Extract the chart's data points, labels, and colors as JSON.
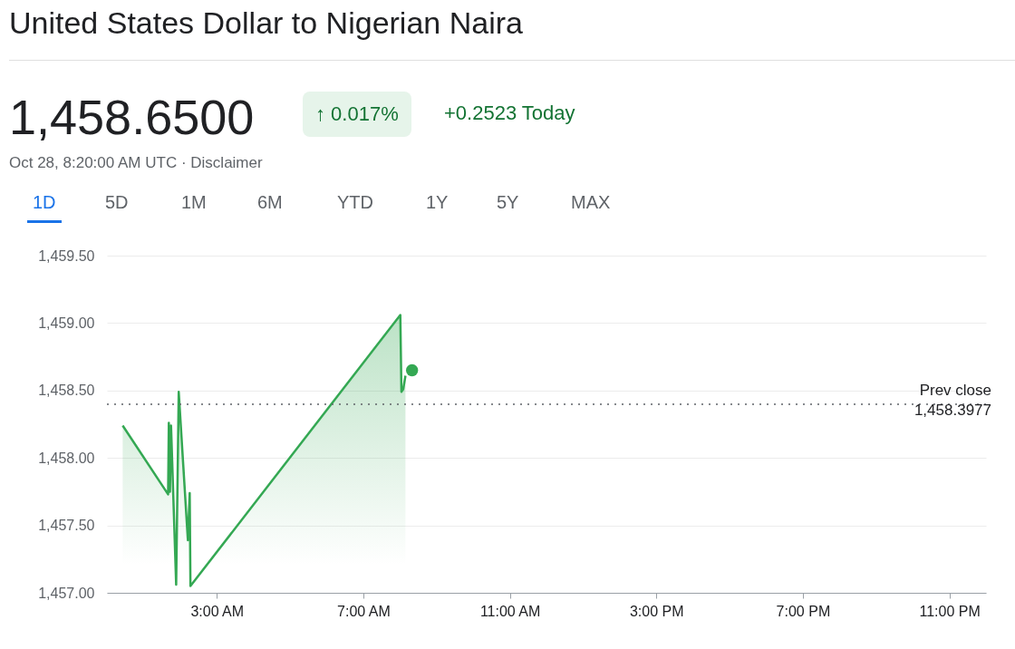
{
  "chart_data": {
    "type": "area",
    "title": "United States Dollar to Nigerian Naira",
    "annotations": [
      "1,458.6500",
      "↑ 0.017%",
      "+0.2523 Today",
      "Oct 28, 8:20:00 AM UTC · Disclaimer",
      "1D",
      "5D",
      "1M",
      "6M",
      "YTD",
      "1Y",
      "5Y",
      "MAX"
    ],
    "series": [
      {
        "color": "#34a853",
        "marker": "none",
        "x": [
          0.43,
          1.67,
          1.69,
          1.72,
          1.75,
          1.89,
          1.96,
          2.21,
          2.26,
          2.28,
          8.01,
          8.04,
          8.09,
          8.15
        ],
        "values": [
          1458.24,
          1457.73,
          1458.26,
          1457.75,
          1458.24,
          1457.06,
          1458.49,
          1457.39,
          1457.74,
          1457.05,
          1459.06,
          1458.49,
          1458.51,
          1458.61
        ]
      },
      {
        "type": "scatter",
        "color": "#34a853",
        "marker": "circle",
        "x": [
          8.33
        ],
        "values": [
          1458.65
        ]
      }
    ],
    "xlim": [
      0,
      24
    ],
    "xticks": [
      {
        "value": 3,
        "label": "3:00 AM"
      },
      {
        "value": 7,
        "label": "7:00 AM"
      },
      {
        "value": 11,
        "label": "11:00 AM"
      },
      {
        "value": 15,
        "label": "3:00 PM"
      },
      {
        "value": 19,
        "label": "7:00 PM"
      },
      {
        "value": 23,
        "label": "11:00 PM"
      }
    ],
    "ylim": [
      1457,
      1459.5
    ],
    "yticks": [
      {
        "value": 1457,
        "label": "1,457.00"
      },
      {
        "value": 1457.5,
        "label": "1,457.50"
      },
      {
        "value": 1458,
        "label": "1,458.00"
      },
      {
        "value": 1458.5,
        "label": "1,458.50"
      },
      {
        "value": 1459,
        "label": "1,459.00"
      },
      {
        "value": 1459.5,
        "label": "1,459.50"
      }
    ],
    "ref_lines": [
      {
        "axis": "y",
        "value": 1458.3977,
        "label": "Prev close\n1,458.3977",
        "line_style": "dotted",
        "color": "#5f6368"
      }
    ],
    "grid": "y"
  }
}
